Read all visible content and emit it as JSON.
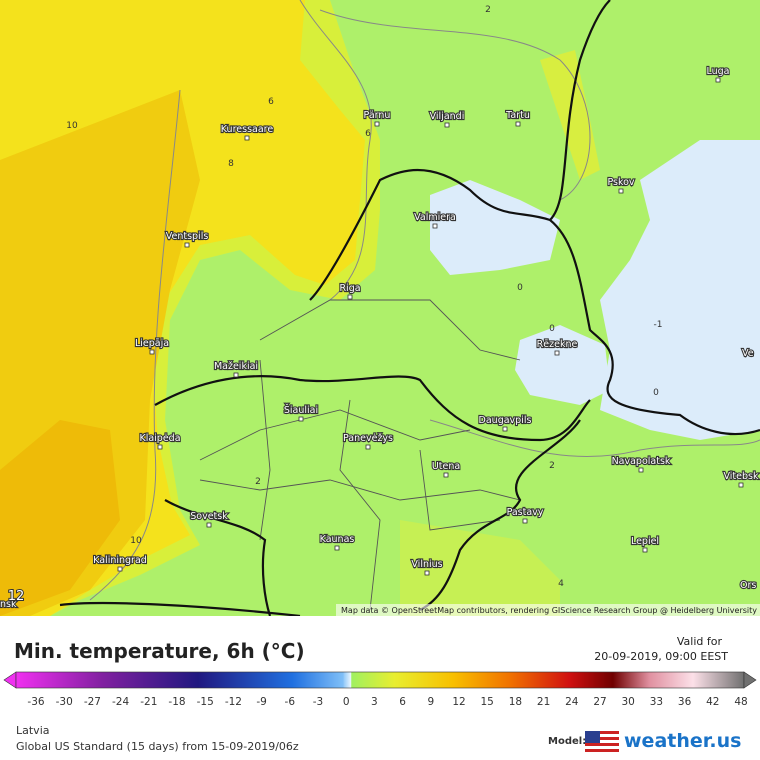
{
  "map": {
    "cities": [
      "Luga",
      "Pärnu",
      "Viljandi",
      "Tartu",
      "Kuressaare",
      "Pskov",
      "Valmiera",
      "Ventspils",
      "Riga",
      "Rēzekne",
      "Liepāja",
      "Mažeikiai",
      "Šiauliai",
      "Daugavpils",
      "Klaipėda",
      "Panevėžys",
      "Navapolatsk",
      "Utena",
      "Vitebsk",
      "Sovetsk",
      "Pastavy",
      "Kaunas",
      "Lepiel",
      "Kaliningrad",
      "Vilnius",
      "Ve",
      "Ors",
      "nsk"
    ],
    "contour_labels": [
      "2",
      "6",
      "6",
      "8",
      "10",
      "10",
      "0",
      "0",
      "0",
      "2",
      "2",
      "4",
      "12",
      "-1"
    ],
    "attribution": "Map data © OpenStreetMap contributors, rendering GIScience Research Group @ Heidelberg University"
  },
  "legend": {
    "title": "Min. temperature, 6h (°C)",
    "valid_label": "Valid for",
    "valid_time": "20-09-2019, 09:00 EEST",
    "ticks": [
      -36,
      -30,
      -27,
      -24,
      -21,
      -18,
      -15,
      -12,
      -9,
      -6,
      -3,
      0,
      3,
      6,
      9,
      12,
      15,
      18,
      21,
      24,
      27,
      30,
      33,
      36,
      42,
      48
    ]
  },
  "footer": {
    "region": "Latvia",
    "model_run": "Global US Standard (15 days) from 15-09-2019/06z",
    "model_label": "Model:",
    "brand": "weather.us"
  }
}
